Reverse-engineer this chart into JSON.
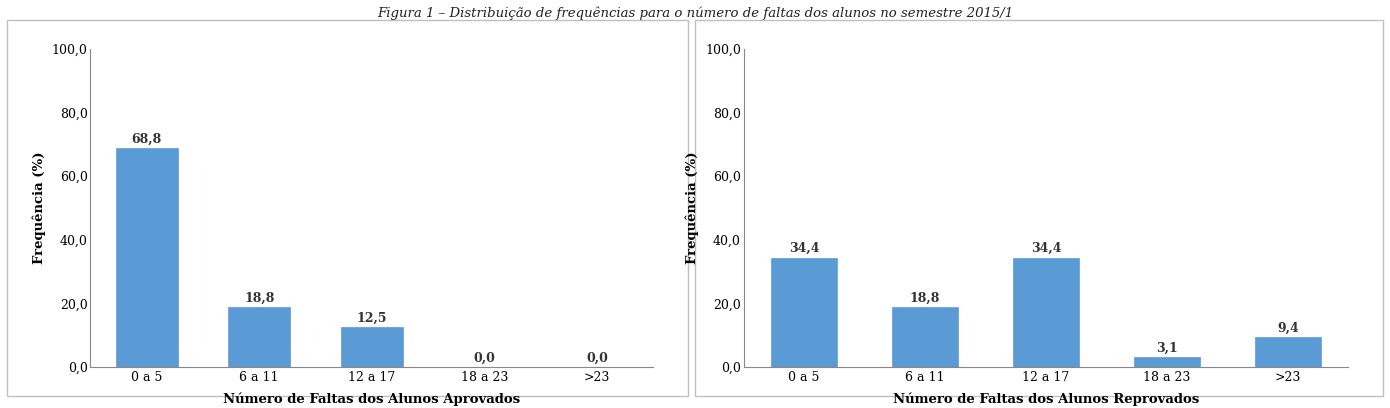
{
  "left_chart": {
    "categories": [
      "0 a 5",
      "6 a 11",
      "12 a 17",
      "18 a 23",
      ">23"
    ],
    "values": [
      68.8,
      18.8,
      12.5,
      0.0,
      0.0
    ],
    "xlabel": "Número de Faltas dos Alunos Aprovados",
    "ylabel": "Frequência (%)",
    "ylim": [
      0,
      100
    ],
    "yticks": [
      0.0,
      20.0,
      40.0,
      60.0,
      80.0,
      100.0
    ],
    "bar_color": "#5b9bd5"
  },
  "right_chart": {
    "categories": [
      "0 a 5",
      "6 a 11",
      "12 a 17",
      "18 a 23",
      ">23"
    ],
    "values": [
      34.4,
      18.8,
      34.4,
      3.1,
      9.4
    ],
    "xlabel": "Número de Faltas dos Alunos Reprovados",
    "ylabel": "Frequência (%)",
    "ylim": [
      0,
      100
    ],
    "yticks": [
      0.0,
      20.0,
      40.0,
      60.0,
      80.0,
      100.0
    ],
    "bar_color": "#5b9bd5"
  },
  "title": "Figura 1 – Distribuição de frequências para o número de faltas dos alunos no semestre 2015/1",
  "title_fontsize": 9.5,
  "label_fontsize": 9.5,
  "tick_fontsize": 9,
  "bar_label_fontsize": 9,
  "figure_background": "#ffffff",
  "box_background": "#ffffff",
  "box_border_color": "#c0c0c0"
}
